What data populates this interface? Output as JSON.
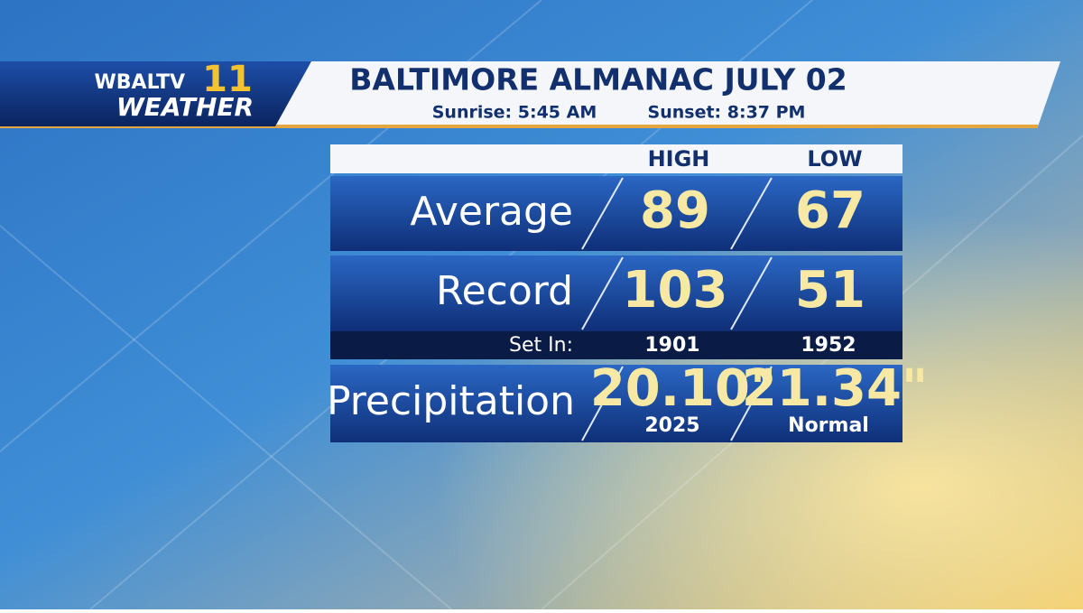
{
  "logo": {
    "station": "WBALTV",
    "channel": "11",
    "brand": "WEATHER"
  },
  "header": {
    "title": "BALTIMORE ALMANAC JULY 02",
    "sunrise": "Sunrise: 5:45 AM",
    "sunset": "Sunset: 8:37 PM"
  },
  "table": {
    "columns": [
      "HIGH",
      "LOW"
    ],
    "average": {
      "label": "Average",
      "high": "89",
      "low": "67"
    },
    "record": {
      "label": "Record",
      "high": "103",
      "low": "51"
    },
    "set_in": {
      "label": "Set In:",
      "high": "1901",
      "low": "1952"
    },
    "precipitation": {
      "label": "Precipitation",
      "high": "20.10\"",
      "high_note": "2025",
      "low": "21.34\"",
      "low_note": "Normal"
    }
  }
}
